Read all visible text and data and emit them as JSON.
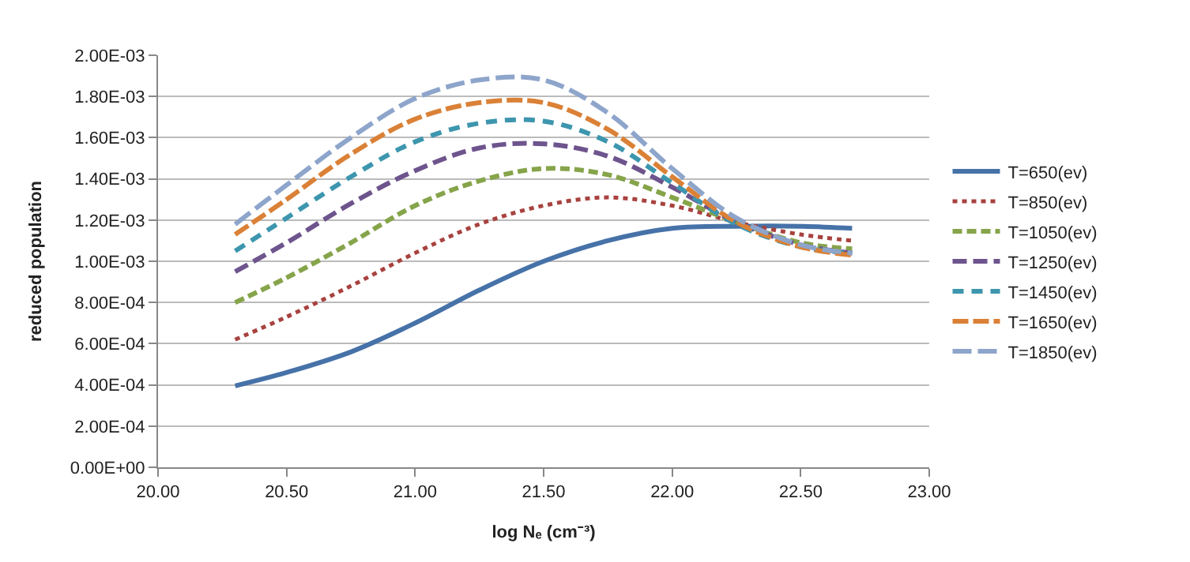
{
  "chart_data": {
    "type": "line",
    "xlabel": "log Nₑ (cm⁻³)",
    "ylabel": "reduced population",
    "x": [
      20.3,
      20.5,
      20.75,
      21.0,
      21.25,
      21.5,
      21.75,
      22.0,
      22.25,
      22.5,
      22.7
    ],
    "series": [
      {
        "name": "T=650(ev)",
        "color": "#4672a8",
        "line_style": "solid",
        "values": [
          0.000395,
          0.00046,
          0.00056,
          0.0007,
          0.00086,
          0.001,
          0.0011,
          0.00116,
          0.00117,
          0.00117,
          0.00116
        ]
      },
      {
        "name": "T=850(ev)",
        "color": "#a8423f",
        "line_style": "dotted",
        "values": [
          0.00062,
          0.00073,
          0.00088,
          0.00104,
          0.00118,
          0.00127,
          0.00131,
          0.00127,
          0.00119,
          0.00113,
          0.0011
        ]
      },
      {
        "name": "T=1050(ev)",
        "color": "#86a44a",
        "line_style": "dashed",
        "values": [
          0.0008,
          0.00092,
          0.00109,
          0.00127,
          0.00139,
          0.00145,
          0.00142,
          0.00131,
          0.00119,
          0.00109,
          0.00106
        ]
      },
      {
        "name": "T=1250(ev)",
        "color": "#6e548d",
        "line_style": "dashed",
        "values": [
          0.00095,
          0.00109,
          0.00128,
          0.00144,
          0.00155,
          0.00157,
          0.00151,
          0.00136,
          0.00119,
          0.00108,
          0.00104
        ]
      },
      {
        "name": "T=1450(ev)",
        "color": "#3d96ae",
        "line_style": "dashed",
        "values": [
          0.00105,
          0.00121,
          0.00141,
          0.00158,
          0.00167,
          0.00168,
          0.00158,
          0.00138,
          0.00118,
          0.00107,
          0.00104
        ]
      },
      {
        "name": "T=1650(ev)",
        "color": "#da8137",
        "line_style": "dashed",
        "values": [
          0.00113,
          0.0013,
          0.00152,
          0.00169,
          0.00177,
          0.00177,
          0.00164,
          0.00141,
          0.00119,
          0.00107,
          0.00103
        ]
      },
      {
        "name": "T=1850(ev)",
        "color": "#8ea5cb",
        "line_style": "dashed",
        "values": [
          0.00118,
          0.00137,
          0.0016,
          0.00179,
          0.00188,
          0.00188,
          0.00172,
          0.00145,
          0.00121,
          0.00108,
          0.00104
        ]
      }
    ],
    "xlim": [
      20,
      23
    ],
    "xticks": [
      {
        "value": 20,
        "label": "20.00"
      },
      {
        "value": 20.5,
        "label": "20.50"
      },
      {
        "value": 21,
        "label": "21.00"
      },
      {
        "value": 21.5,
        "label": "21.50"
      },
      {
        "value": 22,
        "label": "22.00"
      },
      {
        "value": 22.5,
        "label": "22.50"
      },
      {
        "value": 23,
        "label": "23.00"
      }
    ],
    "ylim": [
      0,
      0.002
    ],
    "yticks": [
      {
        "value": 0,
        "label": "0.00E+00"
      },
      {
        "value": 0.0002,
        "label": "2.00E-04"
      },
      {
        "value": 0.0004,
        "label": "4.00E-04"
      },
      {
        "value": 0.0006,
        "label": "6.00E-04"
      },
      {
        "value": 0.0008,
        "label": "8.00E-04"
      },
      {
        "value": 0.001,
        "label": "1.00E-03"
      },
      {
        "value": 0.0012,
        "label": "1.20E-03"
      },
      {
        "value": 0.0014,
        "label": "1.40E-03"
      },
      {
        "value": 0.0016,
        "label": "1.60E-03"
      },
      {
        "value": 0.0018,
        "label": "1.80E-03"
      },
      {
        "value": 0.002,
        "label": "2.00E-03"
      }
    ],
    "grid": "y",
    "legend": "right",
    "marker": "none"
  }
}
